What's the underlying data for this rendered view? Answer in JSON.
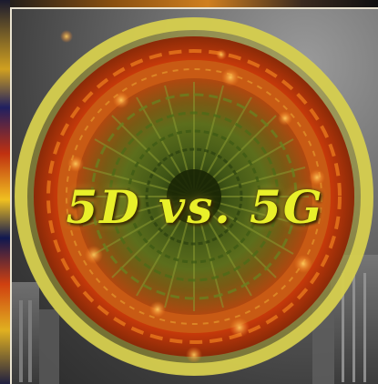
{
  "image": {
    "headline": "5D vs. 5G",
    "palette": {
      "text": "#e9f02a",
      "outer_ring": "#c8c040",
      "flame": "#e05a10",
      "core": "#4a5a18",
      "background": "#6e6e6e"
    }
  }
}
